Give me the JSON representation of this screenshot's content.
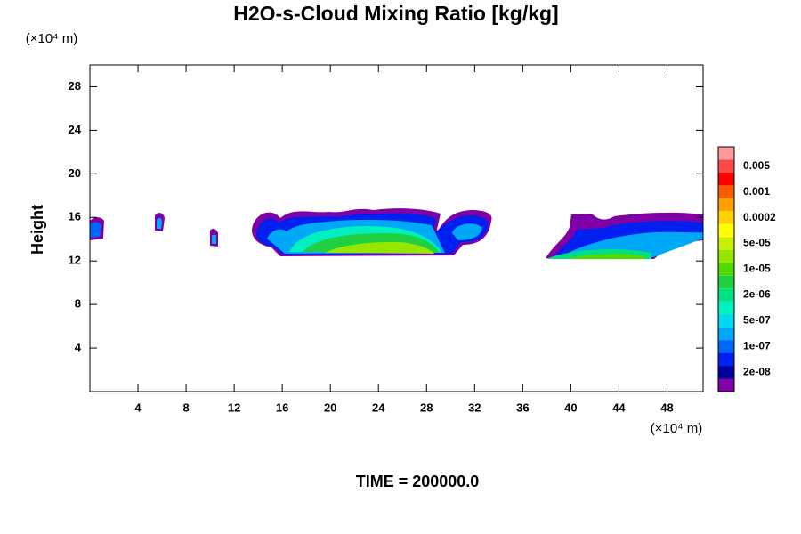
{
  "chart_data": {
    "type": "contour",
    "title": "H2O-s-Cloud Mixing Ratio [kg/kg]",
    "y_label": "Height",
    "x_unit": "(×10⁴ m)",
    "y_unit": "(×10⁴ m)",
    "footer": "TIME = 200000.0",
    "xlim": [
      0,
      51
    ],
    "xticks": [
      4,
      8,
      12,
      16,
      20,
      24,
      28,
      32,
      36,
      40,
      44,
      48
    ],
    "ylim": [
      0,
      30
    ],
    "yticks": [
      4,
      8,
      12,
      16,
      20,
      24,
      28
    ],
    "colorbar": {
      "colors": [
        "#ff9a9a",
        "#ff4a4a",
        "#ff0000",
        "#ff5a00",
        "#ffa000",
        "#ffd200",
        "#ffff00",
        "#c8f000",
        "#96e600",
        "#50dc00",
        "#20d040",
        "#00e080",
        "#00f0c0",
        "#00d8f0",
        "#00a8f8",
        "#0068f8",
        "#0020f0",
        "#0000a0",
        "#8000a8"
      ],
      "labels": [
        "0.005",
        "0.001",
        "0.0002",
        "5e-05",
        "1e-05",
        "2e-06",
        "5e-07",
        "1e-07",
        "2e-08"
      ]
    }
  }
}
